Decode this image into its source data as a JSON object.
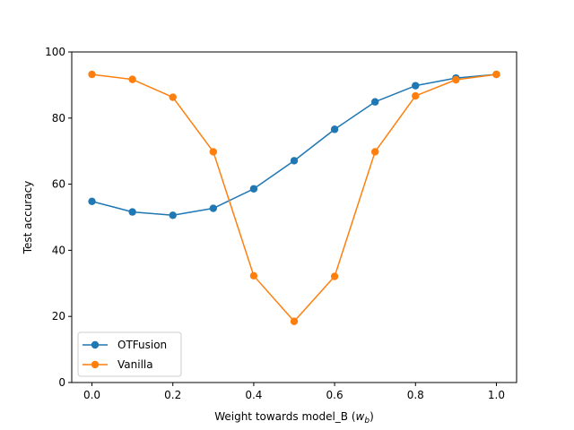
{
  "chart_data": {
    "type": "line",
    "title": "",
    "xlabel": "Weight towards model_B",
    "xlabel_symbol": "w",
    "xlabel_subscript": "b",
    "ylabel": "Test accuracy",
    "xlim": [
      -0.05,
      1.05
    ],
    "ylim": [
      0,
      100
    ],
    "xticks": [
      "0.0",
      "0.2",
      "0.4",
      "0.6",
      "0.8",
      "1.0"
    ],
    "yticks": [
      "0",
      "20",
      "40",
      "60",
      "80",
      "100"
    ],
    "grid": false,
    "legend_position": "lower-left",
    "x": [
      0.0,
      0.1,
      0.2,
      0.3,
      0.4,
      0.5,
      0.6,
      0.7,
      0.8,
      0.9,
      1.0
    ],
    "series": [
      {
        "name": "OTFusion",
        "color": "#1f77b4",
        "values": [
          54.8,
          51.6,
          50.6,
          52.7,
          58.6,
          67.1,
          76.6,
          84.9,
          89.8,
          92.1,
          93.2
        ]
      },
      {
        "name": "Vanilla",
        "color": "#ff7f0e",
        "values": [
          93.2,
          91.7,
          86.3,
          69.8,
          32.3,
          18.5,
          32.1,
          69.8,
          86.7,
          91.6,
          93.2
        ]
      }
    ]
  }
}
